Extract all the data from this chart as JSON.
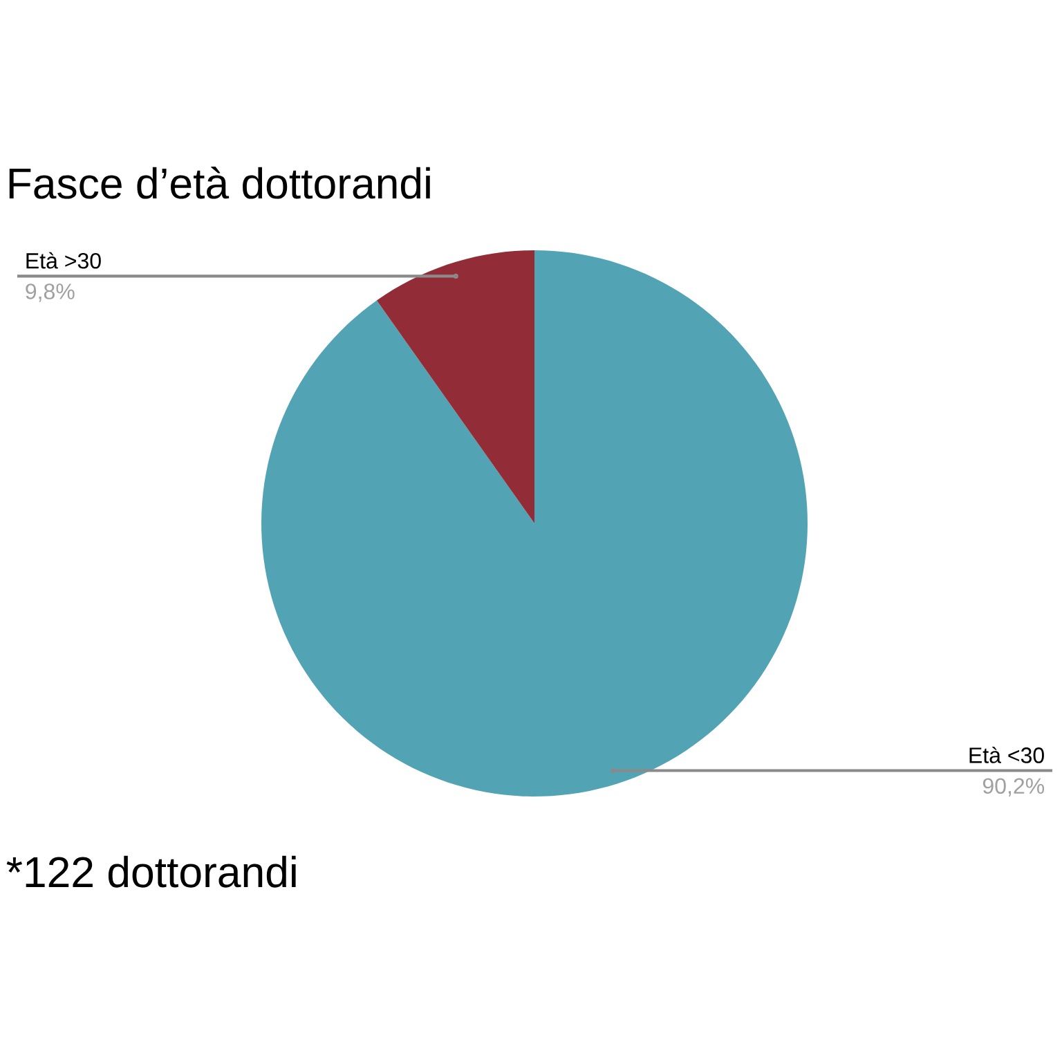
{
  "chart_data": {
    "type": "pie",
    "title": "Fasce d’età dottorandi",
    "categories": [
      "Età <30",
      "Età >30"
    ],
    "values": [
      90.2,
      9.8
    ],
    "colors": [
      "#52a4b4",
      "#922d38"
    ],
    "value_labels": [
      "90,2%",
      "9,8%"
    ],
    "annotations": [
      "*122 dottorandi"
    ]
  }
}
